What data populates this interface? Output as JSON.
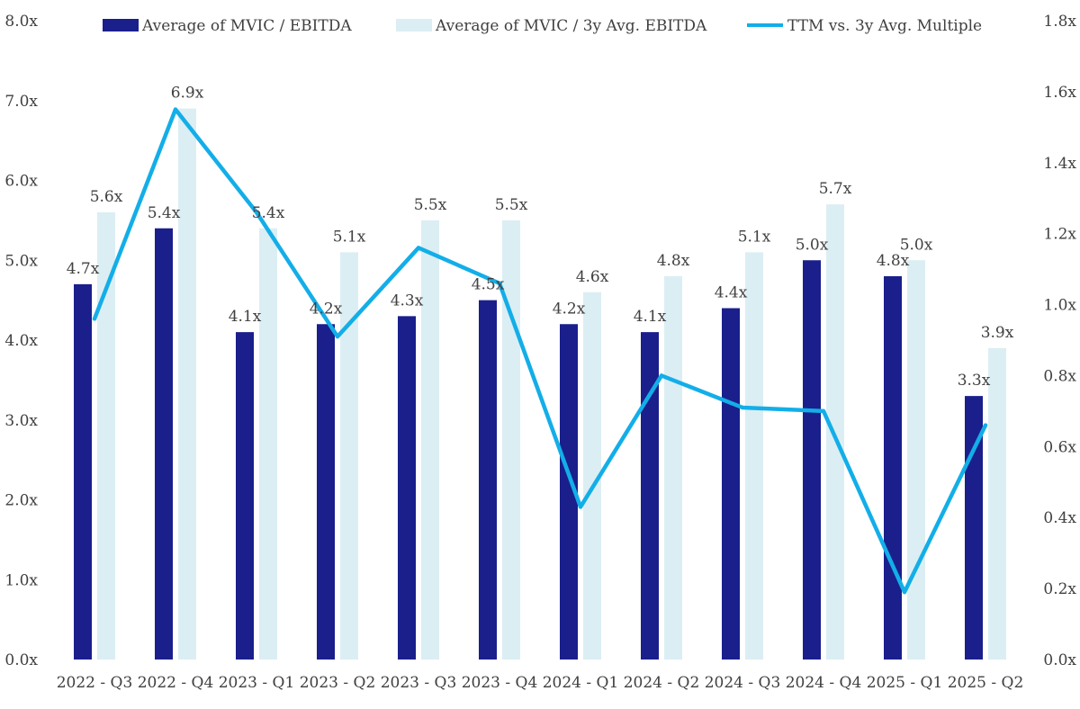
{
  "chart_data": {
    "type": "bar",
    "title": "",
    "categories": [
      "2022 - Q3",
      "2022 - Q4",
      "2023 - Q1",
      "2023 - Q2",
      "2023 - Q3",
      "2023 - Q4",
      "2024 - Q1",
      "2024 - Q2",
      "2024 - Q3",
      "2024 - Q4",
      "2025 - Q1",
      "2025 - Q2"
    ],
    "series": [
      {
        "name": "Average of MVIC / EBITDA",
        "kind": "bar",
        "axis": "left",
        "color": "#1a1f8c",
        "values": [
          4.7,
          5.4,
          4.1,
          4.2,
          4.3,
          4.5,
          4.2,
          4.1,
          4.4,
          5.0,
          4.8,
          3.3
        ],
        "labels": [
          "4.7x",
          "5.4x",
          "4.1x",
          "4.2x",
          "4.3x",
          "4.5x",
          "4.2x",
          "4.1x",
          "4.4x",
          "5.0x",
          "4.8x",
          "3.3x"
        ]
      },
      {
        "name": "Average of MVIC / 3y Avg. EBITDA",
        "kind": "bar",
        "axis": "left",
        "color": "#dbeef3",
        "values": [
          5.6,
          6.9,
          5.4,
          5.1,
          5.5,
          5.5,
          4.6,
          4.8,
          5.1,
          5.7,
          5.0,
          3.9
        ],
        "labels": [
          "5.6x",
          "6.9x",
          "5.4x",
          "5.1x",
          "5.5x",
          "5.5x",
          "4.6x",
          "4.8x",
          "5.1x",
          "5.7x",
          "5.0x",
          "3.9x"
        ]
      },
      {
        "name": "TTM vs. 3y Avg. Multiple",
        "kind": "line",
        "axis": "right",
        "color": "#13aee8",
        "values": [
          0.96,
          1.55,
          1.26,
          0.91,
          1.16,
          1.06,
          0.43,
          0.8,
          0.71,
          0.7,
          0.19,
          0.66
        ]
      }
    ],
    "y_left": {
      "ylim": [
        0,
        8
      ],
      "ticks": [
        "0.0x",
        "1.0x",
        "2.0x",
        "3.0x",
        "4.0x",
        "5.0x",
        "6.0x",
        "7.0x",
        "8.0x"
      ]
    },
    "y_right": {
      "ylim": [
        0,
        1.8
      ],
      "ticks": [
        "0.0x",
        "0.2x",
        "0.4x",
        "0.6x",
        "0.8x",
        "1.0x",
        "1.2x",
        "1.4x",
        "1.6x",
        "1.8x"
      ]
    },
    "xlabel": "",
    "ylabel": "",
    "legend": "top",
    "grid": false
  }
}
